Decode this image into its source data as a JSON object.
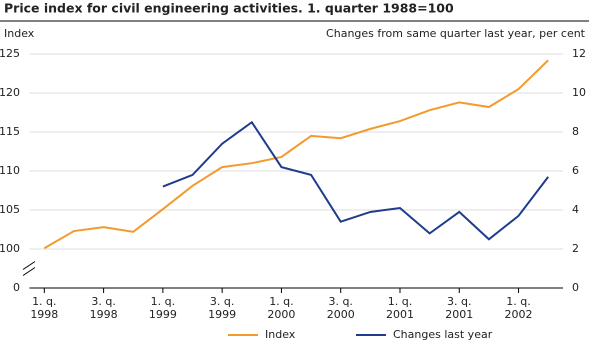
{
  "chart_data": {
    "type": "line",
    "title": "Price index for civil engineering activities. 1. quarter 1988=100",
    "y_label": "Index",
    "y2_label": "Changes from same quarter last year, per cent",
    "categories": [
      [
        "1. q.",
        "1998"
      ],
      null,
      [
        "3. q.",
        "1998"
      ],
      null,
      [
        "1. q.",
        "1999"
      ],
      null,
      [
        "3. q.",
        "1999"
      ],
      null,
      [
        "1. q.",
        "2000"
      ],
      null,
      [
        "3. q.",
        "2000"
      ],
      null,
      [
        "1. q.",
        "2001"
      ],
      null,
      [
        "3. q.",
        "2001"
      ],
      null,
      [
        "1. q.",
        "2002"
      ],
      null
    ],
    "series": [
      {
        "name": "Index",
        "color": "#f39a2e",
        "values": [
          100.1,
          102.3,
          102.8,
          102.2,
          105.1,
          108.1,
          110.5,
          111.0,
          111.8,
          114.5,
          114.2,
          115.4,
          116.4,
          117.8,
          118.8,
          118.2,
          120.5,
          124.2
        ]
      },
      {
        "name": "Changes last year",
        "color": "#1f3b8c",
        "axis": "y2",
        "values": [
          null,
          null,
          null,
          null,
          5.2,
          5.8,
          7.4,
          8.5,
          6.2,
          5.8,
          3.4,
          3.9,
          4.1,
          2.8,
          3.9,
          2.5,
          3.7,
          5.7
        ]
      }
    ],
    "ylim": [
      0,
      125
    ],
    "yticks": [
      0,
      100,
      105,
      110,
      115,
      120,
      125
    ],
    "axis_break": [
      0,
      100
    ],
    "y2lim": [
      0,
      12
    ],
    "y2ticks": [
      0,
      2,
      4,
      6,
      8,
      10,
      12
    ],
    "grid": true,
    "legend": "bottom"
  }
}
